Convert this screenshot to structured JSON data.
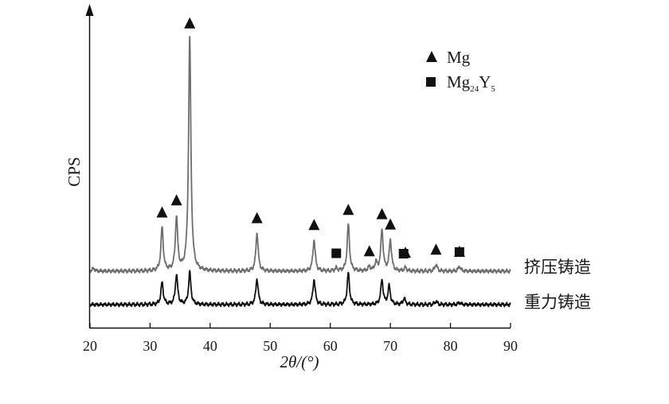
{
  "chart_data": {
    "type": "line",
    "title": "",
    "xlabel": "2θ/(°)",
    "ylabel": "CPS",
    "xlim": [
      20,
      90
    ],
    "xticks": [
      "20",
      "30",
      "40",
      "50",
      "60",
      "70",
      "80",
      "90"
    ],
    "grid": false,
    "legend": {
      "placement": "top-right",
      "entries": [
        {
          "marker": "triangle",
          "label": "Mg"
        },
        {
          "marker": "square",
          "label_main": "Mg",
          "label_sub": "24",
          "label_main2": "Y",
          "label_sub2": "5"
        }
      ]
    },
    "series": [
      {
        "name": "挤压铸造",
        "color": "#6e6e6e",
        "baseline": 0,
        "peaks": [
          [
            20.6,
            0.4
          ],
          [
            32.0,
            6.3
          ],
          [
            34.4,
            7.8
          ],
          [
            36.6,
            34.0
          ],
          [
            47.8,
            5.6
          ],
          [
            57.3,
            4.6
          ],
          [
            61.0,
            0.4
          ],
          [
            63.0,
            6.8
          ],
          [
            66.5,
            0.6
          ],
          [
            67.6,
            1.2
          ],
          [
            68.6,
            6.0
          ],
          [
            70.0,
            4.5
          ],
          [
            72.5,
            0.5
          ],
          [
            77.6,
            1.0
          ],
          [
            81.5,
            0.7
          ]
        ],
        "phase_markers": [
          {
            "type": "triangle",
            "x": 32.0
          },
          {
            "type": "triangle",
            "x": 34.4
          },
          {
            "type": "triangle",
            "x": 36.6
          },
          {
            "type": "triangle",
            "x": 47.8
          },
          {
            "type": "triangle",
            "x": 57.3
          },
          {
            "type": "square",
            "x": 61.0
          },
          {
            "type": "triangle",
            "x": 63.0
          },
          {
            "type": "triangle",
            "x": 66.5
          },
          {
            "type": "triangle",
            "x": 68.6
          },
          {
            "type": "triangle",
            "x": 70.0
          },
          {
            "type": "square",
            "x": 72.2
          },
          {
            "type": "triangle",
            "x": 72.5
          },
          {
            "type": "triangle",
            "x": 77.6
          },
          {
            "type": "square",
            "x": 81.5
          },
          {
            "type": "triangle",
            "x": 81.5
          }
        ]
      },
      {
        "name": "重力铸造",
        "color": "#111111",
        "baseline": 0,
        "peaks": [
          [
            32.0,
            3.2
          ],
          [
            34.4,
            4.4
          ],
          [
            36.6,
            4.7
          ],
          [
            47.8,
            3.8
          ],
          [
            57.3,
            3.7
          ],
          [
            63.0,
            4.6
          ],
          [
            68.6,
            3.6
          ],
          [
            69.8,
            2.7
          ],
          [
            72.3,
            0.9
          ],
          [
            77.6,
            0.5
          ],
          [
            81.5,
            0.3
          ]
        ],
        "phase_markers": []
      }
    ]
  }
}
